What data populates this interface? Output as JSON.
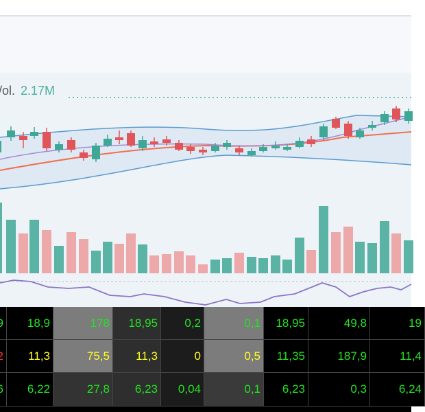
{
  "chart": {
    "volume_prefix": "/ol.",
    "volume_value": "2.17M"
  },
  "table": {
    "rows": [
      [
        "9",
        "18,9",
        "178",
        "18,95",
        "0,2",
        "0,1",
        "18,95",
        "49,8",
        "19"
      ],
      [
        "2",
        "11,3",
        "75,5",
        "11,3",
        "0",
        "0,5",
        "11,35",
        "187,9",
        "11,4"
      ],
      [
        "6",
        "6,22",
        "27,8",
        "6,23",
        "0,04",
        "0,1",
        "6,23",
        "0,3",
        "6,24"
      ]
    ]
  }
}
